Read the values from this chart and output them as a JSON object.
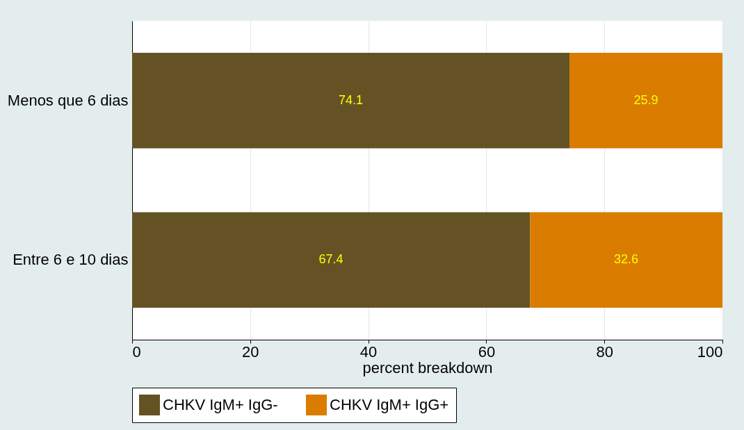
{
  "chart_data": {
    "type": "bar",
    "orientation": "horizontal",
    "stacked": true,
    "categories": [
      "Menos que 6 dias",
      "Entre 6 e 10 dias"
    ],
    "series": [
      {
        "name": "CHKV IgM+ IgG-",
        "color": "#655224",
        "values": [
          74.1,
          67.4
        ]
      },
      {
        "name": "CHKV IgM+ IgG+",
        "color": "#d97c00",
        "values": [
          25.9,
          32.6
        ]
      }
    ],
    "xlabel": "percent breakdown",
    "xlim": [
      0,
      100
    ],
    "xticks": [
      0,
      20,
      40,
      60,
      80,
      100
    ],
    "grid": "x",
    "legend": "bottom",
    "data_labels": true
  }
}
